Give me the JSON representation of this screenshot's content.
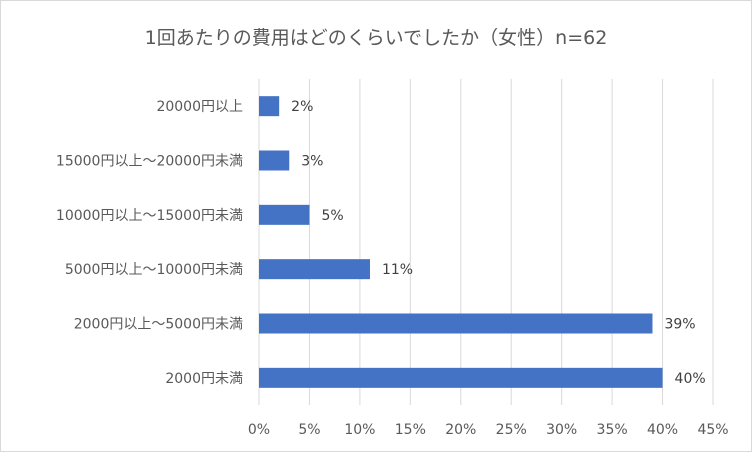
{
  "chart_data": {
    "type": "bar",
    "orientation": "horizontal",
    "title": "1回あたりの費用はどのくらいでしたか（女性）n=62",
    "categories": [
      "20000円以上",
      "15000円以上～20000円未満",
      "10000円以上～15000円未満",
      "5000円以上～10000円未満",
      "2000円以上～5000円未満",
      "2000円未満"
    ],
    "values": [
      2,
      3,
      5,
      11,
      39,
      40
    ],
    "data_labels": [
      "2%",
      "3%",
      "5%",
      "11%",
      "39%",
      "40%"
    ],
    "x_ticks": [
      "0%",
      "5%",
      "10%",
      "15%",
      "20%",
      "25%",
      "30%",
      "35%",
      "40%",
      "45%"
    ],
    "xlim": [
      0,
      45
    ],
    "grid": true,
    "legend": "none",
    "bar_color": "#4472c4"
  }
}
